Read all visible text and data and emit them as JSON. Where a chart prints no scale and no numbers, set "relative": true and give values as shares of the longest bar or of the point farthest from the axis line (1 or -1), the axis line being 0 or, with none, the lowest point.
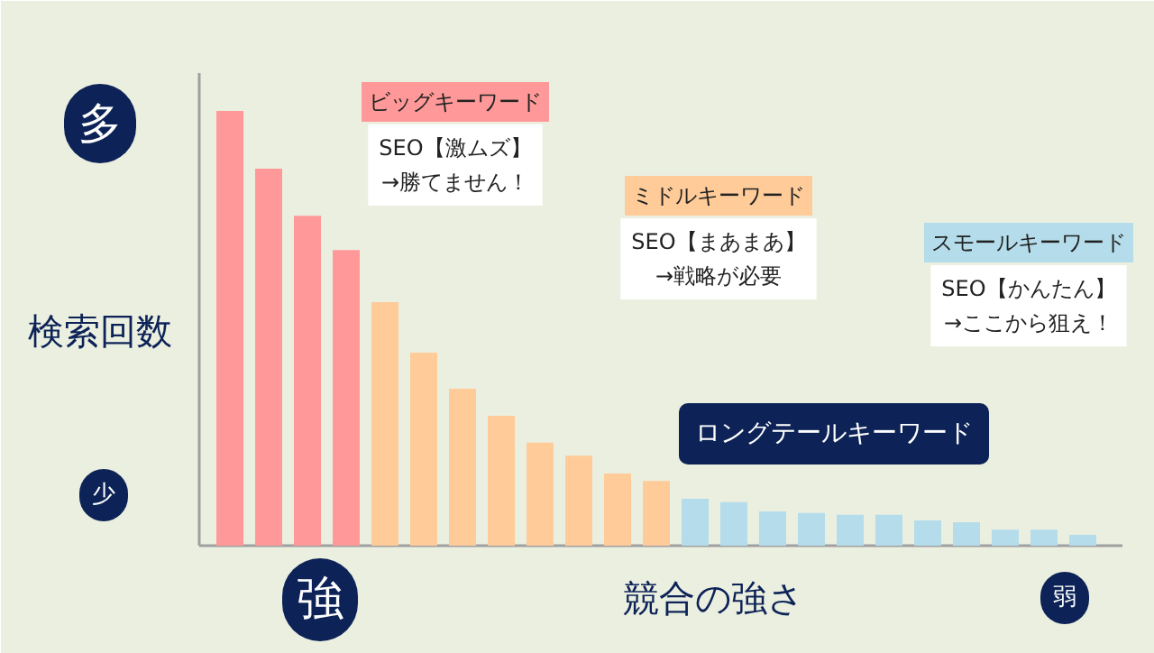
{
  "chart_data": {
    "type": "bar",
    "relative": true,
    "categories": [
      null,
      null,
      null,
      null,
      null,
      null,
      null,
      null,
      null,
      null,
      null,
      null,
      null,
      null,
      null,
      null,
      null,
      null,
      null,
      null,
      null,
      null,
      null
    ],
    "values": [
      1,
      0.867,
      0.759,
      0.68,
      0.56,
      0.444,
      0.361,
      0.299,
      0.237,
      0.207,
      0.166,
      0.149,
      0.108,
      0.1,
      0.079,
      0.075,
      0.071,
      0.071,
      0.058,
      0.054,
      0.037,
      0.037,
      0.025
    ],
    "colors": [
      "#ff9999",
      "#ff9999",
      "#ff9999",
      "#ff9999",
      "#ffcc99",
      "#ffcc99",
      "#ffcc99",
      "#ffcc99",
      "#ffcc99",
      "#ffcc99",
      "#ffcc99",
      "#ffcc99",
      "#b4dcea",
      "#b4dcea",
      "#b4dcea",
      "#b4dcea",
      "#b4dcea",
      "#b4dcea",
      "#b4dcea",
      "#b4dcea",
      "#b4dcea",
      "#b4dcea",
      "#b4dcea"
    ],
    "annotations": [
      "ビッグキーワード",
      "SEO【激ムズ】\n→勝てません！",
      "ミドルキーワード",
      "SEO【まあまあ】\n→戦略が必要",
      "スモールキーワード",
      "SEO【かんたん】\n→ここから狙え！",
      "ロングテールキーワード",
      "多",
      "検索回数",
      "少",
      "強",
      "競合の強さ",
      "弱"
    ]
  }
}
